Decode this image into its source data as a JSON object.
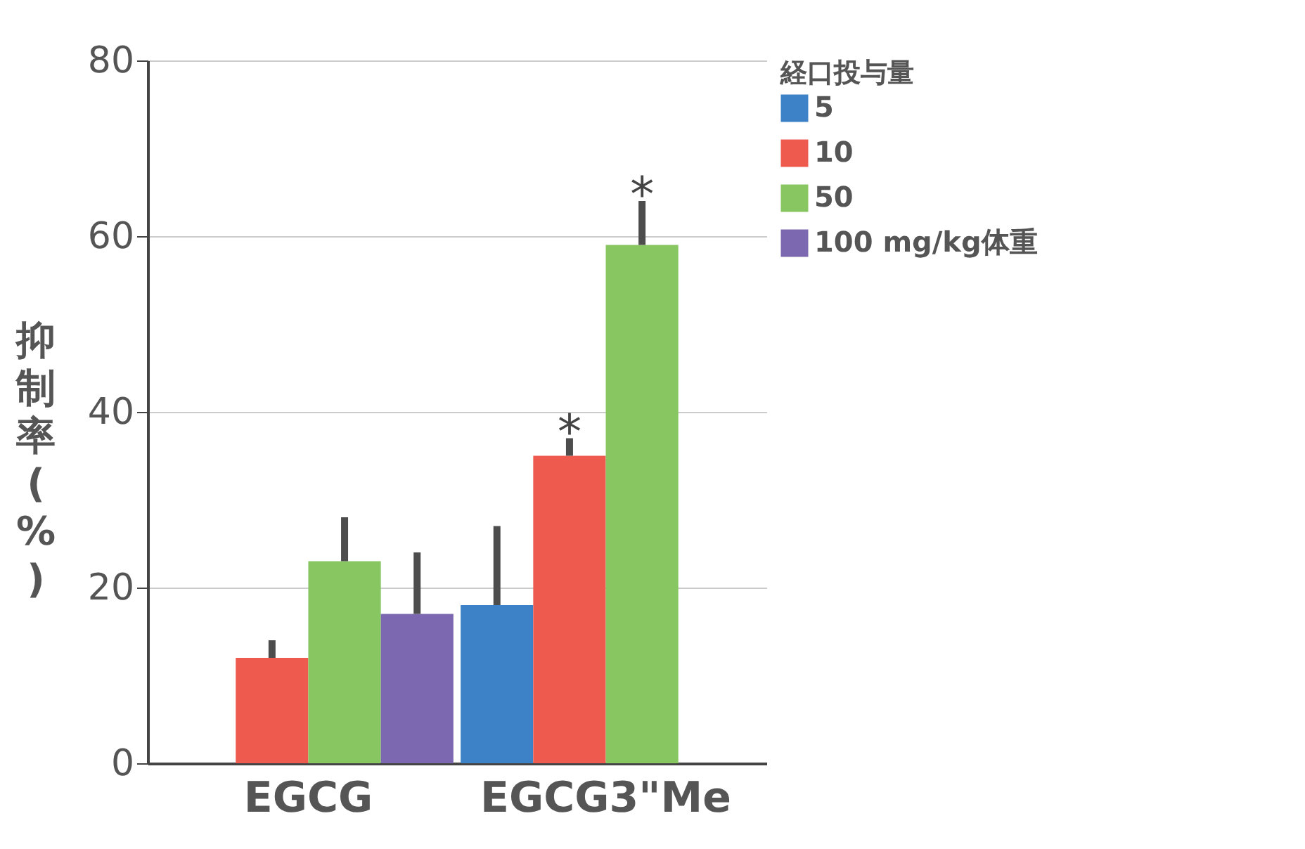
{
  "chart_data": {
    "type": "bar",
    "ylabel": "抑制率(%)",
    "legend_title": "経口投与量",
    "categories": [
      "EGCG",
      "EGCG3\"Me"
    ],
    "series": [
      {
        "name": "5",
        "color": "#3d82c6",
        "values": [
          null,
          18
        ],
        "errors": [
          null,
          [
            18,
            27
          ]
        ]
      },
      {
        "name": "10",
        "color": "#ef5a4e",
        "values": [
          12,
          35
        ],
        "errors": [
          [
            12,
            14
          ],
          [
            35,
            37
          ]
        ]
      },
      {
        "name": "50",
        "color": "#88c662",
        "values": [
          23,
          59
        ],
        "errors": [
          [
            23,
            28
          ],
          [
            59,
            64
          ]
        ]
      },
      {
        "name": "100 mg/kg体重",
        "color": "#7b68b0",
        "values": [
          17,
          null
        ],
        "errors": [
          [
            17,
            24
          ],
          null
        ]
      }
    ],
    "ylim": [
      0,
      80
    ],
    "yticks": [
      0,
      20,
      40,
      60,
      80
    ],
    "grid": "y",
    "legend": "top right",
    "annotations": [
      {
        "text": "*",
        "x": "EGCG3\"Me",
        "y": 35
      },
      {
        "text": "*",
        "x": "EGCG3\"Me",
        "y": 59
      }
    ]
  }
}
